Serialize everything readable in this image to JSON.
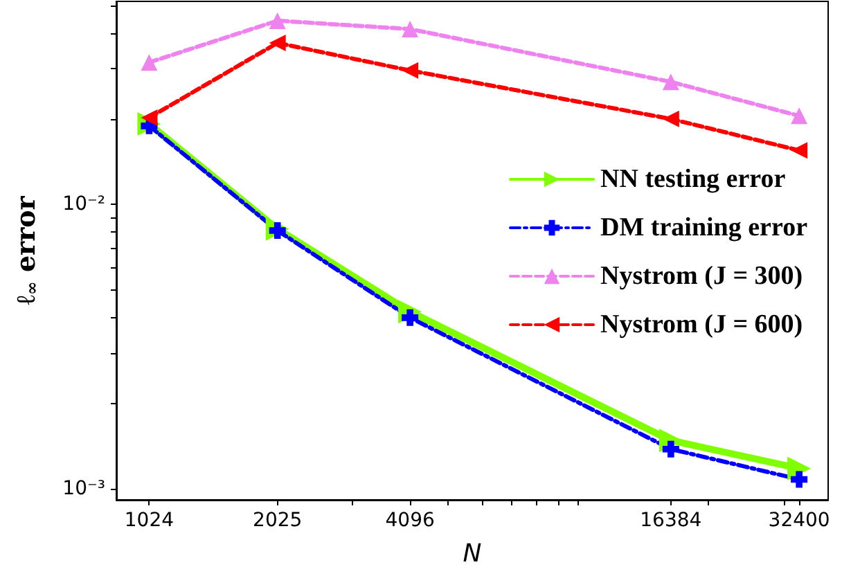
{
  "chart_data": {
    "type": "line",
    "xlabel": "N",
    "ylabel": "ℓ$_{∞}$ error",
    "log": "xy",
    "x": [
      1024,
      2025,
      4096,
      16384,
      32400
    ],
    "series": [
      {
        "name": "NN testing error",
        "color": "#7fff00",
        "marker": "triangle-right",
        "line_style": "solid",
        "values": [
          0.0192,
          0.0082,
          0.0042,
          0.00148,
          0.00118
        ]
      },
      {
        "name": "DM training error",
        "color": "#0000ff",
        "marker": "cross",
        "line_style": "dashdot",
        "values": [
          0.0189,
          0.0081,
          0.004,
          0.00138,
          0.00108
        ]
      },
      {
        "name": "Nystrom (J = 300)",
        "color": "#ee82ee",
        "marker": "triangle",
        "line_style": "dashed",
        "values": [
          0.0316,
          0.0443,
          0.0414,
          0.027,
          0.0205
        ]
      },
      {
        "name": "Nystrom (J = 600)",
        "color": "#ff0000",
        "marker": "triangle-left",
        "line_style": "dashed",
        "values": [
          0.0202,
          0.037,
          0.0296,
          0.02,
          0.0155
        ]
      }
    ],
    "xlim": [
      860,
      37800
    ],
    "ylim": [
      0.000915,
      0.0518
    ],
    "xticks": [
      1024,
      2025,
      4096,
      16384,
      32400,
      {
        "value": 3000,
        "label": null
      },
      {
        "value": 5000,
        "label": null
      },
      {
        "value": 6000,
        "label": null
      },
      {
        "value": 7000,
        "label": null
      },
      {
        "value": 8000,
        "label": null
      },
      {
        "value": 9000,
        "label": null
      },
      {
        "value": 10000,
        "label": null
      },
      {
        "value": 20000,
        "label": null
      },
      {
        "value": 30000,
        "label": null
      }
    ],
    "yticks": [
      {
        "value": 0.001,
        "label": "10⁻³"
      },
      {
        "value": 0.01,
        "label": "10⁻²"
      },
      {
        "value": 0.002,
        "label": null
      },
      {
        "value": 0.003,
        "label": null
      },
      {
        "value": 0.004,
        "label": null
      },
      {
        "value": 0.005,
        "label": null
      },
      {
        "value": 0.006,
        "label": null
      },
      {
        "value": 0.007,
        "label": null
      },
      {
        "value": 0.008,
        "label": null
      },
      {
        "value": 0.009,
        "label": null
      },
      {
        "value": 0.02,
        "label": null
      },
      {
        "value": 0.03,
        "label": null
      },
      {
        "value": 0.04,
        "label": null
      },
      {
        "value": 0.05,
        "label": null
      }
    ],
    "grid": false,
    "legend": "right"
  }
}
